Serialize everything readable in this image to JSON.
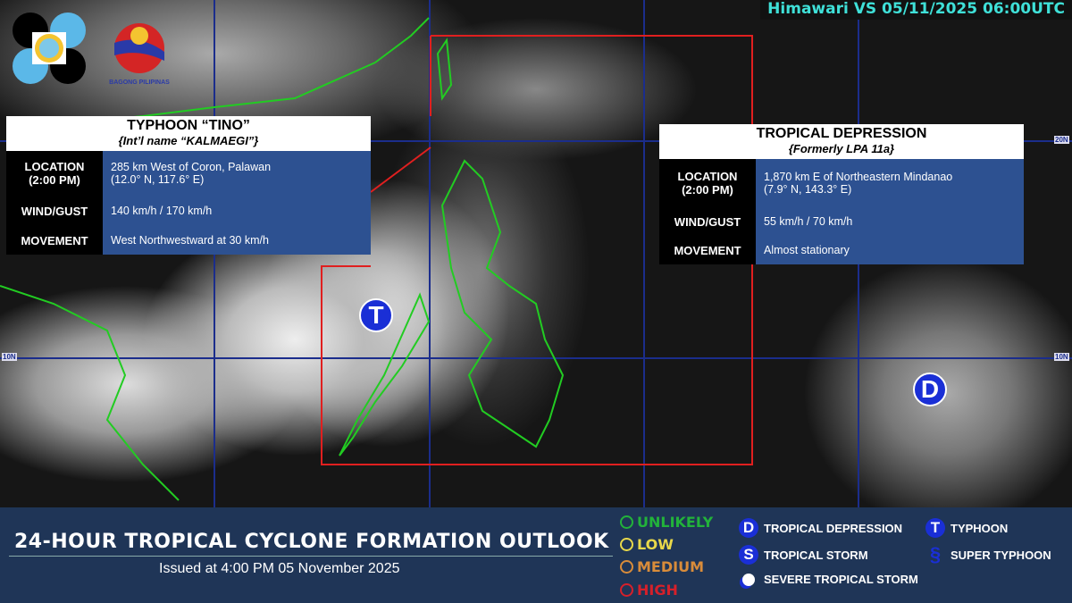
{
  "header": {
    "satellite_timestamp": "Himawari VS 05/11/2025 06:00UTC",
    "logo_left_text": "PAGASA 1865",
    "logo_right_text": "BAGONG PILIPINAS"
  },
  "map": {
    "lat_labels": [
      "20N",
      "10N"
    ],
    "colors": {
      "grid": "#1b2d8c",
      "outlook_box": "#e01f1f",
      "coastline": "#22cc22"
    },
    "markers": [
      {
        "letter": "T",
        "type": "typhoon"
      },
      {
        "letter": "D",
        "type": "tropical depression"
      }
    ]
  },
  "typhoon": {
    "title": "TYPHOON “TINO”",
    "subtitle": "{Int’l name “KALMAEGI”}",
    "location_label": "LOCATION",
    "location_time": "(2:00 PM)",
    "location": "285 km West of Coron, Palawan",
    "coords": "(12.0° N, 117.6° E)",
    "wind_label": "WIND/GUST",
    "wind": "140 km/h / 170 km/h",
    "movement_label": "MOVEMENT",
    "movement": "West Northwestward at 30 km/h"
  },
  "depression": {
    "title": "TROPICAL DEPRESSION",
    "subtitle": "{Formerly LPA 11a}",
    "location_label": "LOCATION",
    "location_time": "(2:00 PM)",
    "location": "1,870 km E of Northeastern Mindanao",
    "coords": "(7.9° N, 143.3° E)",
    "wind_label": "WIND/GUST",
    "wind": "55 km/h / 70 km/h",
    "movement_label": "MOVEMENT",
    "movement": "Almost stationary"
  },
  "footer": {
    "title": "24-HOUR TROPICAL CYCLONE FORMATION OUTLOOK",
    "issued": "Issued at 4:00 PM  05 November 2025",
    "likelihood": [
      {
        "label": "UNLIKELY",
        "color": "#22b33a"
      },
      {
        "label": "LOW",
        "color": "#e8d84a"
      },
      {
        "label": "MEDIUM",
        "color": "#d98c3a"
      },
      {
        "label": "HIGH",
        "color": "#d6202a"
      }
    ],
    "legend": [
      {
        "symbol": "D",
        "label": "TROPICAL DEPRESSION"
      },
      {
        "symbol": "S",
        "label": "TROPICAL STORM"
      },
      {
        "symbol": "",
        "label": "SEVERE TROPICAL STORM"
      },
      {
        "symbol": "T",
        "label": "TYPHOON"
      },
      {
        "symbol": "",
        "label": "SUPER TYPHOON"
      }
    ]
  }
}
